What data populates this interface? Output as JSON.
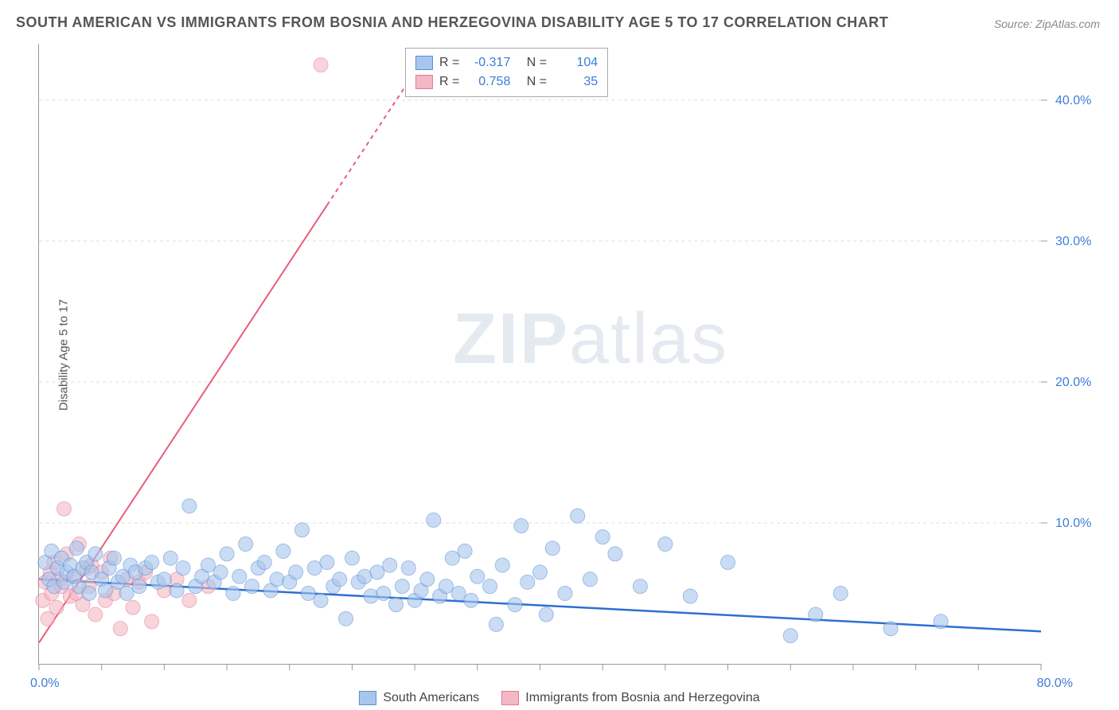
{
  "title": "SOUTH AMERICAN VS IMMIGRANTS FROM BOSNIA AND HERZEGOVINA DISABILITY AGE 5 TO 17 CORRELATION CHART",
  "source_label": "Source:",
  "source_value": "ZipAtlas.com",
  "y_axis_label": "Disability Age 5 to 17",
  "watermark": "ZIPatlas",
  "chart": {
    "type": "scatter",
    "xlim": [
      0,
      80
    ],
    "ylim": [
      0,
      44
    ],
    "x_tick_labels": {
      "min": "0.0%",
      "max": "80.0%"
    },
    "y_tick_labels": [
      "10.0%",
      "20.0%",
      "30.0%",
      "40.0%"
    ],
    "y_tick_values": [
      10,
      20,
      30,
      40
    ],
    "x_minor_ticks": [
      0,
      5,
      10,
      15,
      20,
      25,
      30,
      35,
      40,
      45,
      50,
      55,
      60,
      65,
      70,
      75,
      80
    ],
    "grid_color": "#dddddd",
    "axis_color": "#999999",
    "background_color": "#ffffff",
    "label_color": "#3b7dd8",
    "label_fontsize": 16,
    "point_radius": 9,
    "point_opacity": 0.45,
    "series": [
      {
        "name": "South Americans",
        "color_fill": "#a8c6ed",
        "color_stroke": "#5b8fd6",
        "R": "-0.317",
        "N": "104",
        "trend": {
          "x1": 0,
          "y1": 6.0,
          "x2": 80,
          "y2": 2.3,
          "color": "#2e6fd0",
          "width": 2.5
        },
        "points": [
          [
            0.5,
            7.2
          ],
          [
            0.8,
            6.0
          ],
          [
            1.0,
            8.0
          ],
          [
            1.2,
            5.5
          ],
          [
            1.5,
            6.8
          ],
          [
            1.8,
            7.5
          ],
          [
            2.0,
            5.8
          ],
          [
            2.2,
            6.5
          ],
          [
            2.5,
            7.0
          ],
          [
            2.8,
            6.2
          ],
          [
            3.0,
            8.2
          ],
          [
            3.2,
            5.5
          ],
          [
            3.5,
            6.8
          ],
          [
            3.8,
            7.2
          ],
          [
            4.0,
            5.0
          ],
          [
            4.2,
            6.5
          ],
          [
            4.5,
            7.8
          ],
          [
            5.0,
            6.0
          ],
          [
            5.3,
            5.2
          ],
          [
            5.6,
            6.8
          ],
          [
            6.0,
            7.5
          ],
          [
            6.3,
            5.8
          ],
          [
            6.7,
            6.2
          ],
          [
            7.0,
            5.0
          ],
          [
            7.3,
            7.0
          ],
          [
            7.7,
            6.5
          ],
          [
            8.0,
            5.5
          ],
          [
            8.5,
            6.8
          ],
          [
            9.0,
            7.2
          ],
          [
            9.5,
            5.8
          ],
          [
            10.0,
            6.0
          ],
          [
            10.5,
            7.5
          ],
          [
            11.0,
            5.2
          ],
          [
            11.5,
            6.8
          ],
          [
            12.0,
            11.2
          ],
          [
            12.5,
            5.5
          ],
          [
            13.0,
            6.2
          ],
          [
            13.5,
            7.0
          ],
          [
            14.0,
            5.8
          ],
          [
            14.5,
            6.5
          ],
          [
            15.0,
            7.8
          ],
          [
            15.5,
            5.0
          ],
          [
            16.0,
            6.2
          ],
          [
            16.5,
            8.5
          ],
          [
            17.0,
            5.5
          ],
          [
            17.5,
            6.8
          ],
          [
            18.0,
            7.2
          ],
          [
            18.5,
            5.2
          ],
          [
            19.0,
            6.0
          ],
          [
            19.5,
            8.0
          ],
          [
            20.0,
            5.8
          ],
          [
            20.5,
            6.5
          ],
          [
            21.0,
            9.5
          ],
          [
            21.5,
            5.0
          ],
          [
            22.0,
            6.8
          ],
          [
            22.5,
            4.5
          ],
          [
            23.0,
            7.2
          ],
          [
            23.5,
            5.5
          ],
          [
            24.0,
            6.0
          ],
          [
            24.5,
            3.2
          ],
          [
            25.0,
            7.5
          ],
          [
            25.5,
            5.8
          ],
          [
            26.0,
            6.2
          ],
          [
            26.5,
            4.8
          ],
          [
            27.0,
            6.5
          ],
          [
            27.5,
            5.0
          ],
          [
            28.0,
            7.0
          ],
          [
            28.5,
            4.2
          ],
          [
            29.0,
            5.5
          ],
          [
            29.5,
            6.8
          ],
          [
            30.0,
            4.5
          ],
          [
            30.5,
            5.2
          ],
          [
            31.0,
            6.0
          ],
          [
            31.5,
            10.2
          ],
          [
            32.0,
            4.8
          ],
          [
            32.5,
            5.5
          ],
          [
            33.0,
            7.5
          ],
          [
            33.5,
            5.0
          ],
          [
            34.0,
            8.0
          ],
          [
            34.5,
            4.5
          ],
          [
            35.0,
            6.2
          ],
          [
            36.0,
            5.5
          ],
          [
            36.5,
            2.8
          ],
          [
            37.0,
            7.0
          ],
          [
            38.0,
            4.2
          ],
          [
            38.5,
            9.8
          ],
          [
            39.0,
            5.8
          ],
          [
            40.0,
            6.5
          ],
          [
            40.5,
            3.5
          ],
          [
            41.0,
            8.2
          ],
          [
            42.0,
            5.0
          ],
          [
            43.0,
            10.5
          ],
          [
            44.0,
            6.0
          ],
          [
            45.0,
            9.0
          ],
          [
            46.0,
            7.8
          ],
          [
            48.0,
            5.5
          ],
          [
            50.0,
            8.5
          ],
          [
            52.0,
            4.8
          ],
          [
            55.0,
            7.2
          ],
          [
            60.0,
            2.0
          ],
          [
            62.0,
            3.5
          ],
          [
            64.0,
            5.0
          ],
          [
            68.0,
            2.5
          ],
          [
            72.0,
            3.0
          ]
        ]
      },
      {
        "name": "Immigrants from Bosnia and Herzegovina",
        "color_fill": "#f4b8c4",
        "color_stroke": "#e77a94",
        "R": "0.758",
        "N": "35",
        "trend": {
          "x1": 0,
          "y1": 1.5,
          "x2": 30,
          "y2": 42,
          "dash_after_x": 23,
          "color": "#e85d7a",
          "width": 2
        },
        "points": [
          [
            0.3,
            4.5
          ],
          [
            0.5,
            5.8
          ],
          [
            0.7,
            3.2
          ],
          [
            0.9,
            6.5
          ],
          [
            1.0,
            5.0
          ],
          [
            1.2,
            7.2
          ],
          [
            1.4,
            4.0
          ],
          [
            1.6,
            6.0
          ],
          [
            1.8,
            5.5
          ],
          [
            2.0,
            11.0
          ],
          [
            2.2,
            7.8
          ],
          [
            2.5,
            4.8
          ],
          [
            2.8,
            6.2
          ],
          [
            3.0,
            5.0
          ],
          [
            3.2,
            8.5
          ],
          [
            3.5,
            4.2
          ],
          [
            3.8,
            6.8
          ],
          [
            4.0,
            5.5
          ],
          [
            4.2,
            7.0
          ],
          [
            4.5,
            3.5
          ],
          [
            5.0,
            6.5
          ],
          [
            5.3,
            4.5
          ],
          [
            5.7,
            7.5
          ],
          [
            6.0,
            5.0
          ],
          [
            6.5,
            2.5
          ],
          [
            7.0,
            6.0
          ],
          [
            7.5,
            4.0
          ],
          [
            8.0,
            5.8
          ],
          [
            8.5,
            6.5
          ],
          [
            9.0,
            3.0
          ],
          [
            10.0,
            5.2
          ],
          [
            11.0,
            6.0
          ],
          [
            12.0,
            4.5
          ],
          [
            13.5,
            5.5
          ],
          [
            22.5,
            42.5
          ]
        ]
      }
    ]
  },
  "stats_legend": {
    "rows": [
      {
        "swatch_fill": "#a8c6ed",
        "swatch_stroke": "#5b8fd6",
        "R_label": "R =",
        "R": "-0.317",
        "N_label": "N =",
        "N": "104"
      },
      {
        "swatch_fill": "#f4b8c4",
        "swatch_stroke": "#e77a94",
        "R_label": "R =",
        "R": "0.758",
        "N_label": "N =",
        "N": "35"
      }
    ]
  },
  "bottom_legend": [
    {
      "swatch_fill": "#a8c6ed",
      "swatch_stroke": "#5b8fd6",
      "label": "South Americans"
    },
    {
      "swatch_fill": "#f4b8c4",
      "swatch_stroke": "#e77a94",
      "label": "Immigrants from Bosnia and Herzegovina"
    }
  ]
}
